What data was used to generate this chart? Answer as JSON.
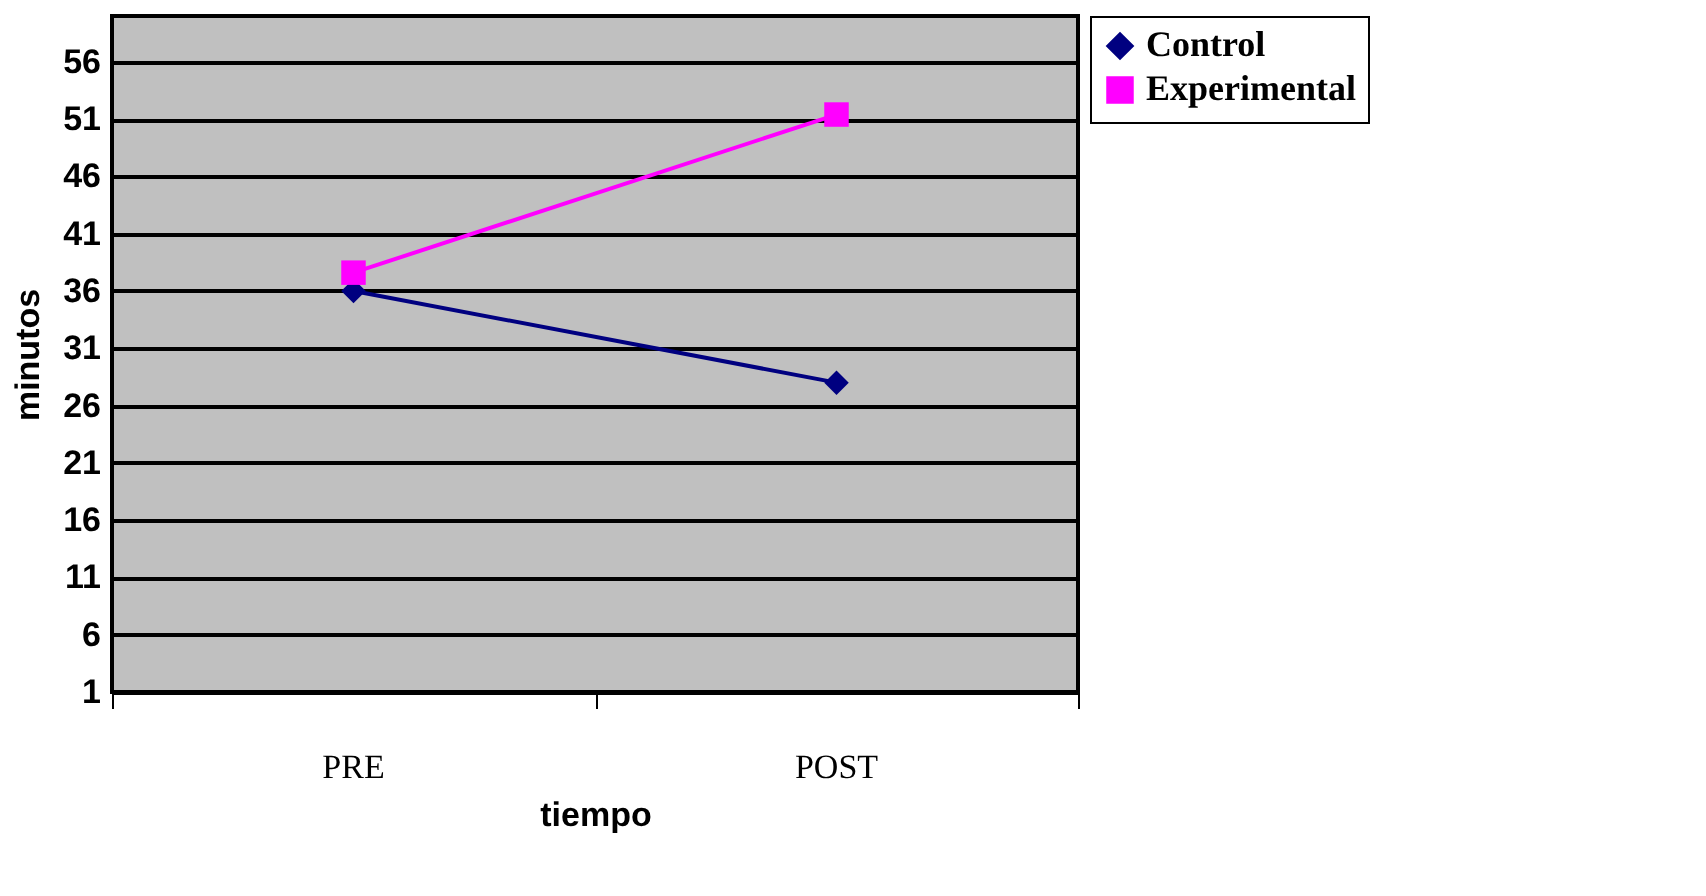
{
  "chart_data": {
    "type": "line",
    "xlabel": "tiempo",
    "ylabel": "minutos",
    "categories": [
      "PRE",
      "POST"
    ],
    "series": [
      {
        "name": "Control",
        "color": "#000080",
        "marker": "diamond",
        "values": [
          36.0,
          28.0
        ]
      },
      {
        "name": "Experimental",
        "color": "#ff00ff",
        "marker": "square",
        "values": [
          37.6,
          51.4
        ]
      }
    ],
    "ylim": [
      1,
      60
    ],
    "yticks": [
      1,
      6,
      11,
      16,
      21,
      26,
      31,
      36,
      41,
      46,
      51,
      56
    ],
    "grid": "y",
    "legend": "right",
    "line_style": "solid"
  }
}
